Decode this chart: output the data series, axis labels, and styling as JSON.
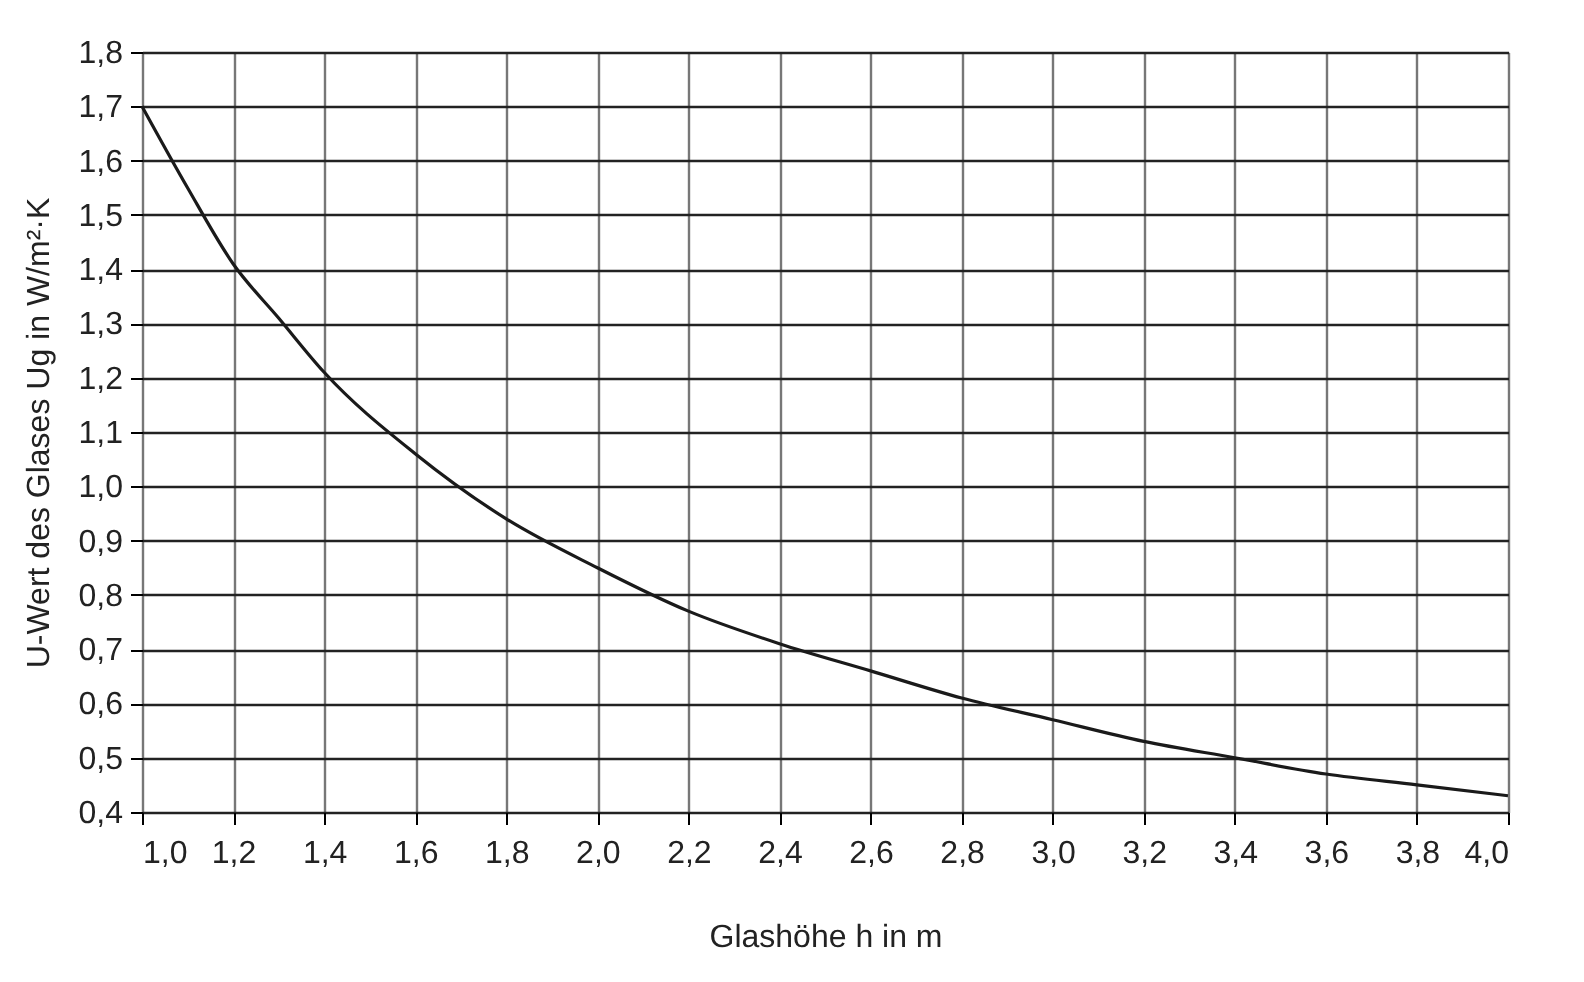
{
  "chart_data": {
    "type": "line",
    "xlabel": "Glashöhe h in m",
    "ylabel": "U-Wert des Glases Ug in W/m²·K",
    "x": [
      1.0,
      1.1,
      1.2,
      1.3,
      1.4,
      1.6,
      1.8,
      2.0,
      2.2,
      2.4,
      2.6,
      2.8,
      3.0,
      3.2,
      3.4,
      3.6,
      3.8,
      4.0
    ],
    "series": [
      {
        "color": "#1a1a1a",
        "values": [
          1.7,
          1.55,
          1.41,
          1.31,
          1.21,
          1.06,
          0.94,
          0.85,
          0.77,
          0.71,
          0.66,
          0.61,
          0.57,
          0.53,
          0.5,
          0.47,
          0.45,
          0.43
        ]
      }
    ],
    "xlim": [
      1.0,
      4.0
    ],
    "ylim": [
      0.4,
      1.8
    ],
    "xticks": [
      {
        "value": 1.0,
        "label": "1,0"
      },
      {
        "value": 1.2,
        "label": "1,2"
      },
      {
        "value": 1.4,
        "label": "1,4"
      },
      {
        "value": 1.6,
        "label": "1,6"
      },
      {
        "value": 1.8,
        "label": "1,8"
      },
      {
        "value": 2.0,
        "label": "2,0"
      },
      {
        "value": 2.2,
        "label": "2,2"
      },
      {
        "value": 2.4,
        "label": "2,4"
      },
      {
        "value": 2.6,
        "label": "2,6"
      },
      {
        "value": 2.8,
        "label": "2,8"
      },
      {
        "value": 3.0,
        "label": "3,0"
      },
      {
        "value": 3.2,
        "label": "3,2"
      },
      {
        "value": 3.4,
        "label": "3,4"
      },
      {
        "value": 3.6,
        "label": "3,6"
      },
      {
        "value": 3.8,
        "label": "3,8"
      },
      {
        "value": 4.0,
        "label": "4,0"
      }
    ],
    "yticks": [
      {
        "value": 0.4,
        "label": "0,4"
      },
      {
        "value": 0.5,
        "label": "0,5"
      },
      {
        "value": 0.6,
        "label": "0,6"
      },
      {
        "value": 0.7,
        "label": "0,7"
      },
      {
        "value": 0.8,
        "label": "0,8"
      },
      {
        "value": 0.9,
        "label": "0,9"
      },
      {
        "value": 1.0,
        "label": "1,0"
      },
      {
        "value": 1.1,
        "label": "1,1"
      },
      {
        "value": 1.2,
        "label": "1,2"
      },
      {
        "value": 1.3,
        "label": "1,3"
      },
      {
        "value": 1.4,
        "label": "1,4"
      },
      {
        "value": 1.5,
        "label": "1,5"
      },
      {
        "value": 1.6,
        "label": "1,6"
      },
      {
        "value": 1.7,
        "label": "1,7"
      },
      {
        "value": 1.8,
        "label": "1,8"
      }
    ],
    "grid": true,
    "marker": "none",
    "line_style": "solid"
  }
}
